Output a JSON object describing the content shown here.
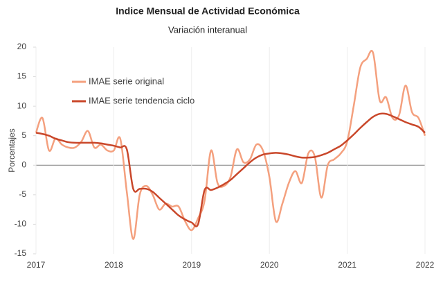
{
  "chart_data": {
    "type": "line",
    "title": "Indice Mensual de  Actividad Económica",
    "subtitle": "Variación interanual",
    "y_label": "Porcentajes",
    "x": [
      2017,
      2017.083,
      2017.167,
      2017.25,
      2017.333,
      2017.417,
      2017.5,
      2017.583,
      2017.667,
      2017.75,
      2017.833,
      2017.917,
      2018,
      2018.083,
      2018.167,
      2018.25,
      2018.333,
      2018.417,
      2018.5,
      2018.583,
      2018.667,
      2018.75,
      2018.833,
      2018.917,
      2019,
      2019.083,
      2019.167,
      2019.25,
      2019.333,
      2019.417,
      2019.5,
      2019.583,
      2019.667,
      2019.75,
      2019.833,
      2019.917,
      2020,
      2020.083,
      2020.167,
      2020.25,
      2020.333,
      2020.417,
      2020.5,
      2020.583,
      2020.667,
      2020.75,
      2020.833,
      2020.917,
      2021,
      2021.083,
      2021.167,
      2021.25,
      2021.333,
      2021.417,
      2021.5,
      2021.583,
      2021.667,
      2021.75,
      2021.833,
      2021.917,
      2022
    ],
    "series": [
      {
        "name": "IMAE serie original",
        "color": "#f4a07e",
        "width": 2.5,
        "values": [
          5.5,
          8,
          2.5,
          4.5,
          3.5,
          3,
          3,
          4,
          5.8,
          3,
          3.5,
          2.5,
          2.5,
          4.5,
          -4.5,
          -12.5,
          -5,
          -3.5,
          -5,
          -7.5,
          -6.5,
          -7,
          -7,
          -9.5,
          -11,
          -9,
          -6,
          2.5,
          -3,
          -3.5,
          -2,
          2.7,
          0.5,
          1,
          3.5,
          2.5,
          -2,
          -9.5,
          -6.5,
          -3,
          -1,
          -3,
          2,
          1.5,
          -5.5,
          0,
          1,
          2,
          4,
          10,
          16.5,
          18,
          19,
          11,
          11.5,
          8,
          8.5,
          13.5,
          9,
          8,
          5
        ]
      },
      {
        "name": "IMAE serie  tendencia ciclo",
        "color": "#c9472a",
        "width": 2.5,
        "values": [
          5.5,
          5.3,
          5,
          4.5,
          4.2,
          3.9,
          3.8,
          3.8,
          3.8,
          3.8,
          3.7,
          3.5,
          3.3,
          3,
          2.7,
          -4,
          -4,
          -4,
          -4.5,
          -5.5,
          -6.5,
          -7.5,
          -8.5,
          -9.2,
          -9.7,
          -10,
          -4.2,
          -4.2,
          -3.8,
          -3.2,
          -2.5,
          -1.5,
          -0.5,
          0.5,
          1.3,
          1.8,
          2,
          2.1,
          2,
          1.8,
          1.5,
          1.3,
          1.3,
          1.4,
          1.7,
          2.1,
          2.7,
          3.3,
          4.2,
          5.2,
          6.3,
          7.3,
          8.2,
          8.7,
          8.7,
          8.3,
          7.8,
          7.3,
          6.9,
          6.5,
          5.5
        ]
      }
    ],
    "xlim": [
      2017,
      2022
    ],
    "xticks": [
      2017,
      2018,
      2019,
      2020,
      2021,
      2022
    ],
    "ylim": [
      -15,
      20
    ],
    "yticks": [
      -15,
      -10,
      -5,
      0,
      5,
      10,
      15,
      20
    ],
    "legend": "upper left"
  }
}
